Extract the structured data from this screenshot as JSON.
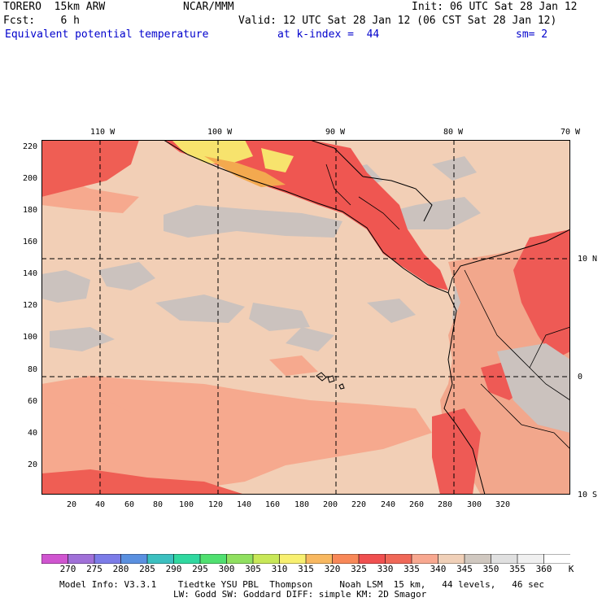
{
  "header": {
    "model": "TORERO  15km ARW",
    "org": "NCAR/MMM",
    "init": "Init: 06 UTC Sat 28 Jan 12",
    "fcst": "Fcst:    6 h",
    "valid": "Valid: 12 UTC Sat 28 Jan 12 (06 CST Sat 28 Jan 12)",
    "field": "Equivalent potential temperature",
    "level": "at k-index =  44",
    "smooth": "sm= 2"
  },
  "map": {
    "top_labels": [
      "110 W",
      "100 W",
      "90 W",
      "80 W",
      "70 W"
    ],
    "right_labels": [
      "10 N",
      "0",
      "10 S"
    ],
    "left_ticks": [
      "220",
      "200",
      "180",
      "160",
      "140",
      "120",
      "100",
      "80",
      "60",
      "40",
      "20"
    ],
    "bottom_ticks": [
      "20",
      "40",
      "60",
      "80",
      "100",
      "120",
      "140",
      "160",
      "180",
      "200",
      "220",
      "240",
      "260",
      "280",
      "300",
      "320"
    ]
  },
  "colorbar": {
    "levels": [
      "270",
      "275",
      "280",
      "285",
      "290",
      "295",
      "300",
      "305",
      "310",
      "315",
      "320",
      "325",
      "330",
      "335",
      "340",
      "345",
      "350",
      "355",
      "360"
    ],
    "unit": "K",
    "colors": [
      "#d055d0",
      "#a070d8",
      "#7c7ce8",
      "#5a90e0",
      "#3cc0c0",
      "#30d8a0",
      "#50e070",
      "#90e060",
      "#c8e858",
      "#f8f070",
      "#f8b860",
      "#f88858",
      "#f05050",
      "#f06858",
      "#f8a890",
      "#f0d0b8",
      "#d0c8c0",
      "#e0e0e0",
      "#f0f0f0",
      "#ffffff"
    ]
  },
  "footer": {
    "line1": "Model Info: V3.3.1    Tiedtke YSU PBL  Thompson     Noah LSM  15 km,   44 levels,   46 sec",
    "line2": "LW: Godd SW: Goddard DIFF: simple KM: 2D Smagor"
  }
}
